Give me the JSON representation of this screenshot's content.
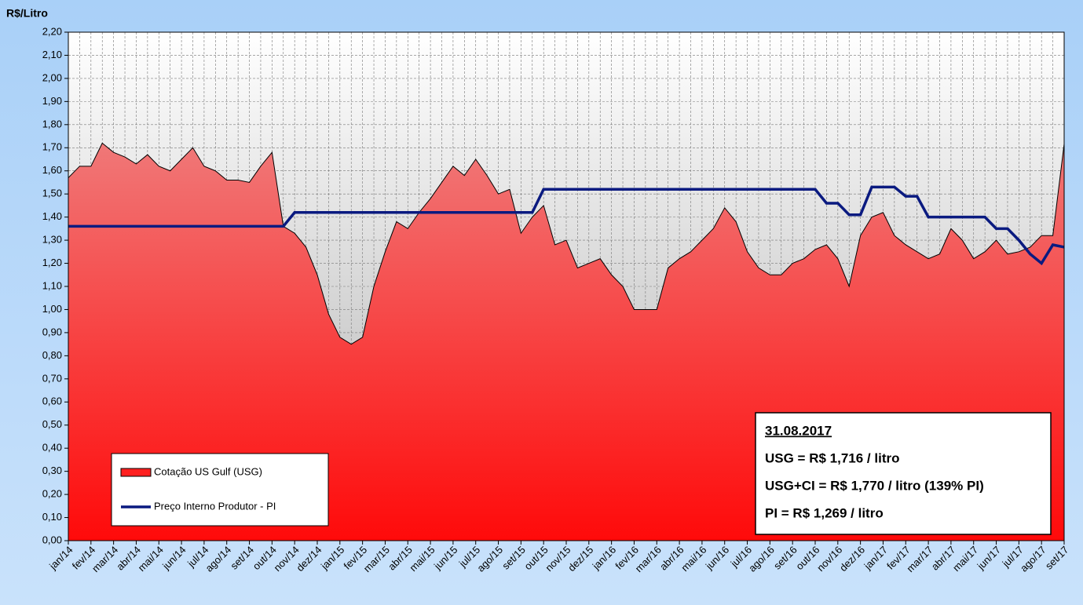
{
  "chart_data": {
    "type": "area-line",
    "y_label": "R$/Litro",
    "categories": [
      "jan/14",
      null,
      "fev/14",
      null,
      "mar/14",
      null,
      "abr/14",
      null,
      "mai/14",
      null,
      "jun/14",
      null,
      "jul/14",
      null,
      "ago/14",
      null,
      "set/14",
      null,
      "out/14",
      null,
      "nov/14",
      null,
      "dez/14",
      null,
      "jan/15",
      null,
      "fev/15",
      null,
      "mar/15",
      null,
      "abr/15",
      null,
      "mai/15",
      null,
      "jun/15",
      null,
      "jul/15",
      null,
      "ago/15",
      null,
      "set/15",
      null,
      "out/15",
      null,
      "nov/15",
      null,
      "dez/15",
      null,
      "jan/16",
      null,
      "fev/16",
      null,
      "mar/16",
      null,
      "abr/16",
      null,
      "mai/16",
      null,
      "jun/16",
      null,
      "jul/16",
      null,
      "ago/16",
      null,
      "set/16",
      null,
      "out/16",
      null,
      "nov/16",
      null,
      "dez/16",
      null,
      "jan/17",
      null,
      "fev/17",
      null,
      "mar/17",
      null,
      "abr/17",
      null,
      "mai/17",
      null,
      "jun/17",
      null,
      "jul/17",
      null,
      "ago/17",
      null,
      "set/17"
    ],
    "series": [
      {
        "name": "Cotação US Gulf (USG)",
        "kind": "area",
        "color": "#ff2020",
        "values": [
          1.57,
          1.62,
          1.62,
          1.72,
          1.68,
          1.66,
          1.63,
          1.67,
          1.62,
          1.6,
          1.65,
          1.7,
          1.62,
          1.6,
          1.56,
          1.56,
          1.55,
          1.62,
          1.68,
          1.36,
          1.33,
          1.27,
          1.15,
          0.98,
          0.88,
          0.85,
          0.88,
          1.1,
          1.25,
          1.38,
          1.35,
          1.42,
          1.48,
          1.55,
          1.62,
          1.58,
          1.65,
          1.58,
          1.5,
          1.52,
          1.33,
          1.4,
          1.45,
          1.28,
          1.3,
          1.18,
          1.2,
          1.22,
          1.15,
          1.1,
          1.0,
          1.0,
          1.0,
          1.18,
          1.22,
          1.25,
          1.3,
          1.35,
          1.44,
          1.38,
          1.25,
          1.18,
          1.15,
          1.15,
          1.2,
          1.22,
          1.26,
          1.28,
          1.22,
          1.1,
          1.32,
          1.4,
          1.42,
          1.32,
          1.28,
          1.25,
          1.22,
          1.24,
          1.35,
          1.3,
          1.22,
          1.25,
          1.3,
          1.24,
          1.25,
          1.27,
          1.32,
          1.32,
          1.716
        ]
      },
      {
        "name": "Preço Interno Produtor - PI",
        "kind": "line",
        "color": "#0a1a80",
        "values": [
          1.36,
          1.36,
          1.36,
          1.36,
          1.36,
          1.36,
          1.36,
          1.36,
          1.36,
          1.36,
          1.36,
          1.36,
          1.36,
          1.36,
          1.36,
          1.36,
          1.36,
          1.36,
          1.36,
          1.36,
          1.42,
          1.42,
          1.42,
          1.42,
          1.42,
          1.42,
          1.42,
          1.42,
          1.42,
          1.42,
          1.42,
          1.42,
          1.42,
          1.42,
          1.42,
          1.42,
          1.42,
          1.42,
          1.42,
          1.42,
          1.42,
          1.42,
          1.52,
          1.52,
          1.52,
          1.52,
          1.52,
          1.52,
          1.52,
          1.52,
          1.52,
          1.52,
          1.52,
          1.52,
          1.52,
          1.52,
          1.52,
          1.52,
          1.52,
          1.52,
          1.52,
          1.52,
          1.52,
          1.52,
          1.52,
          1.52,
          1.52,
          1.46,
          1.46,
          1.41,
          1.41,
          1.53,
          1.53,
          1.53,
          1.49,
          1.49,
          1.4,
          1.4,
          1.4,
          1.4,
          1.4,
          1.4,
          1.35,
          1.35,
          1.3,
          1.24,
          1.2,
          1.28,
          1.27
        ]
      }
    ],
    "ylim": [
      0,
      2.2
    ],
    "yticks": [
      {
        "value": 0,
        "label": "0,00"
      },
      {
        "value": 0.1,
        "label": "0,10"
      },
      {
        "value": 0.2,
        "label": "0,20"
      },
      {
        "value": 0.3,
        "label": "0,30"
      },
      {
        "value": 0.4,
        "label": "0,40"
      },
      {
        "value": 0.5,
        "label": "0,50"
      },
      {
        "value": 0.6,
        "label": "0,60"
      },
      {
        "value": 0.7,
        "label": "0,70"
      },
      {
        "value": 0.8,
        "label": "0,80"
      },
      {
        "value": 0.9,
        "label": "0,90"
      },
      {
        "value": 1,
        "label": "1,00"
      },
      {
        "value": 1.1,
        "label": "1,10"
      },
      {
        "value": 1.2,
        "label": "1,20"
      },
      {
        "value": 1.3,
        "label": "1,30"
      },
      {
        "value": 1.4,
        "label": "1,40"
      },
      {
        "value": 1.5,
        "label": "1,50"
      },
      {
        "value": 1.6,
        "label": "1,60"
      },
      {
        "value": 1.7,
        "label": "1,70"
      },
      {
        "value": 1.8,
        "label": "1,80"
      },
      {
        "value": 1.9,
        "label": "1,90"
      },
      {
        "value": 2,
        "label": "2,00"
      },
      {
        "value": 2.1,
        "label": "2,10"
      },
      {
        "value": 2.2,
        "label": "2,20"
      }
    ],
    "grid": true,
    "legend": "lower left",
    "annotations": [
      "31.08.2017",
      "USG = R$ 1,716 / litro",
      "USG+CI  = R$ 1,770 / litro (139% PI)",
      "PI = R$ 1,269 / litro"
    ]
  }
}
